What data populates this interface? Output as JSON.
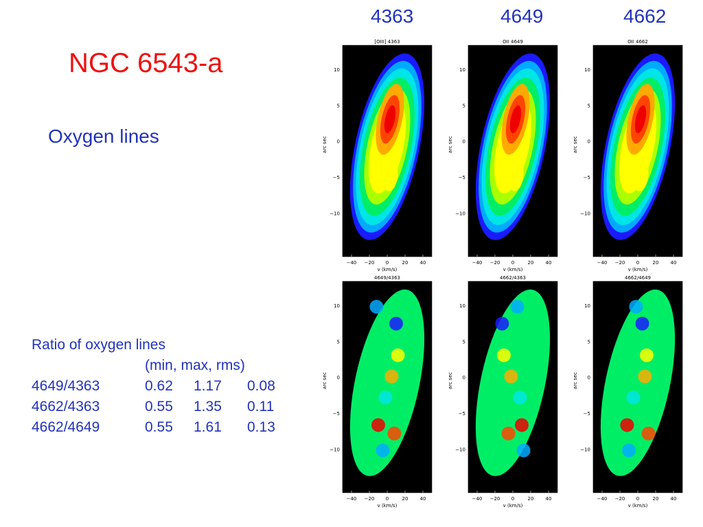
{
  "slide": {
    "title": "NGC 6543-a",
    "subtitle": "Oxygen lines"
  },
  "column_heads": [
    "4363",
    "4649",
    "4662"
  ],
  "ratio_table": {
    "caption": "Ratio of oxygen lines",
    "header": "(min,  max, rms)",
    "rows": [
      {
        "name": "4649/4363",
        "min": "0.62",
        "max": "1.17",
        "rms": "0.08"
      },
      {
        "name": "4662/4363",
        "min": "0.55",
        "max": "1.35",
        "rms": "0.11"
      },
      {
        "name": "4662/4649",
        "min": "0.55",
        "max": "1.61",
        "rms": "0.13"
      }
    ]
  },
  "panels": [
    {
      "title": "[OIII] 4363",
      "type": "intensity"
    },
    {
      "title": "OII 4649",
      "type": "intensity"
    },
    {
      "title": "OII 4662",
      "type": "intensity"
    },
    {
      "title": "4649/4363",
      "type": "ratio"
    },
    {
      "title": "4662/4363",
      "type": "ratio"
    },
    {
      "title": "4662/4649",
      "type": "ratio"
    }
  ],
  "axes": {
    "xlabel": "v (km/s)",
    "ylabel_top": "arc sec",
    "ylabel_bottom": "arc sec",
    "xticks": [
      "−40",
      "−20",
      "0",
      "20",
      "40"
    ],
    "yticks": [
      "10",
      "5",
      "0",
      "−5",
      "−10"
    ]
  },
  "colors": {
    "text_blue": "#2233bb",
    "title_red": "#ee1111",
    "colormap": [
      "#1a1aff",
      "#00aaff",
      "#00e5e5",
      "#00ee66",
      "#aaff00",
      "#ffff00",
      "#ffaa00",
      "#ff4400",
      "#ee0000"
    ]
  }
}
